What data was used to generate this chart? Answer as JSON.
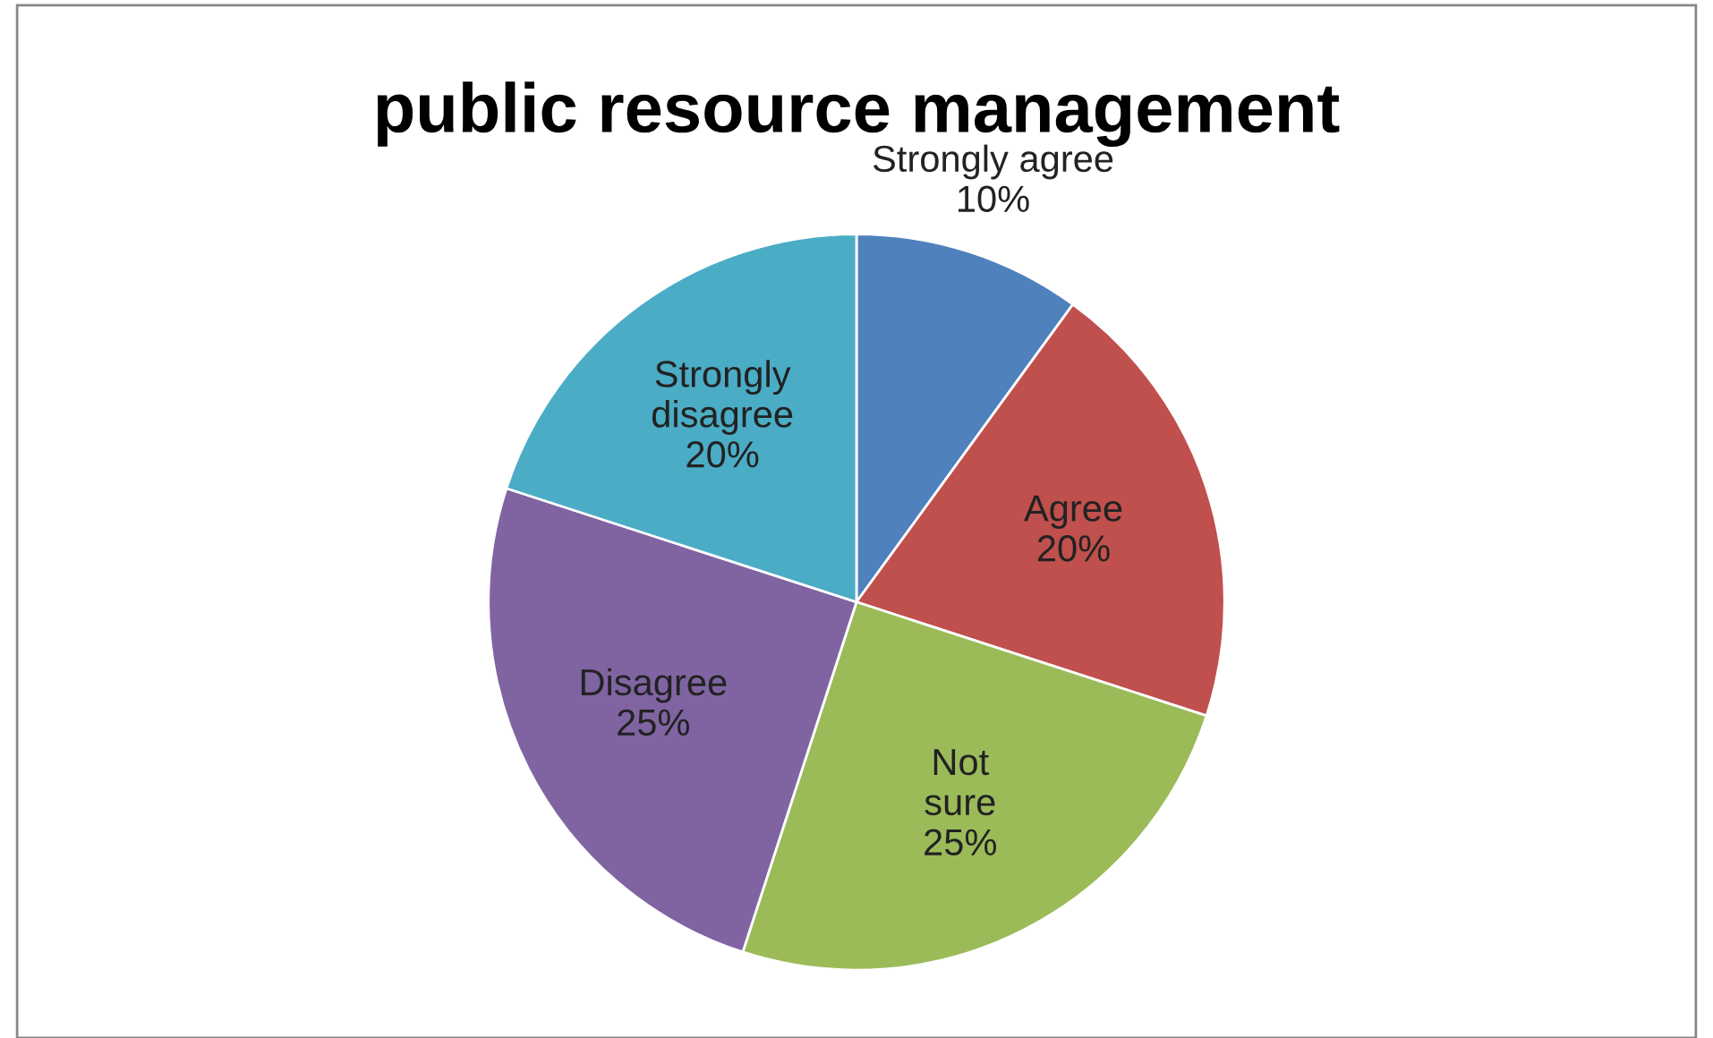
{
  "chart_data": {
    "type": "pie",
    "title": "public resource management",
    "categories": [
      "Strongly agree",
      "Agree",
      "Not sure",
      "Disagree",
      "Strongly disagree"
    ],
    "values": [
      10,
      20,
      25,
      25,
      20
    ],
    "colors": [
      "#4f81bd",
      "#c0504d",
      "#9bbb59",
      "#8064a2",
      "#4bacc6"
    ],
    "value_labels": [
      "10%",
      "20%",
      "25%",
      "25%",
      "20%"
    ],
    "legend": false
  }
}
